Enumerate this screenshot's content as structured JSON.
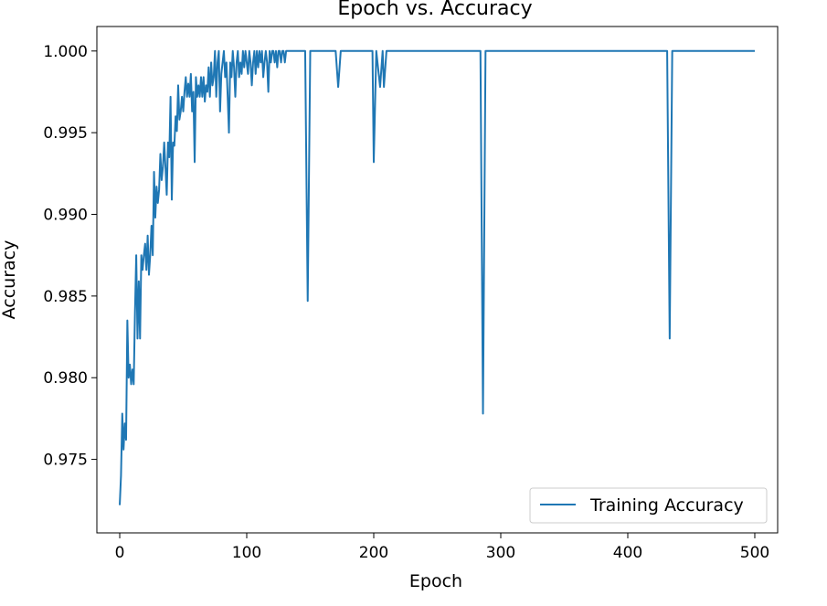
{
  "chart_data": {
    "type": "line",
    "title": "Epoch vs. Accuracy",
    "xlabel": "Epoch",
    "ylabel": "Accuracy",
    "xlim": [
      -18,
      518
    ],
    "ylim": [
      0.9705,
      1.0015
    ],
    "xticks": [
      0,
      100,
      200,
      300,
      400,
      500
    ],
    "yticks": [
      0.975,
      0.98,
      0.985,
      0.99,
      0.995,
      1.0
    ],
    "ytick_labels": [
      "0.975",
      "0.980",
      "0.985",
      "0.990",
      "0.995",
      "1.000"
    ],
    "grid": false,
    "legend": "bottom-right",
    "colors": {
      "series": "#1f77b4",
      "axes": "#000000",
      "legend_border": "#cccccc"
    },
    "series": [
      {
        "name": "Training Accuracy",
        "x": [
          0,
          1,
          2,
          3,
          4,
          5,
          6,
          7,
          8,
          9,
          10,
          11,
          12,
          13,
          14,
          15,
          16,
          17,
          18,
          19,
          20,
          21,
          22,
          23,
          24,
          25,
          26,
          27,
          28,
          29,
          30,
          31,
          32,
          33,
          34,
          35,
          36,
          37,
          38,
          39,
          40,
          41,
          42,
          43,
          44,
          45,
          46,
          47,
          48,
          49,
          50,
          51,
          52,
          53,
          54,
          55,
          56,
          57,
          58,
          59,
          60,
          61,
          62,
          63,
          64,
          65,
          66,
          67,
          68,
          69,
          70,
          71,
          72,
          73,
          74,
          75,
          76,
          77,
          78,
          79,
          80,
          81,
          82,
          83,
          84,
          85,
          86,
          87,
          88,
          89,
          90,
          91,
          92,
          93,
          94,
          95,
          96,
          97,
          98,
          99,
          100,
          101,
          102,
          103,
          104,
          105,
          106,
          107,
          108,
          109,
          110,
          111,
          112,
          113,
          114,
          115,
          116,
          117,
          118,
          119,
          120,
          121,
          122,
          123,
          124,
          125,
          126,
          127,
          128,
          129,
          130,
          131,
          132,
          133,
          134,
          135,
          140,
          146,
          148,
          150,
          165,
          170,
          172,
          174,
          195,
          199,
          200,
          202,
          205,
          207,
          208,
          210,
          280,
          284,
          286,
          288,
          290,
          420,
          431,
          433,
          435,
          437,
          500
        ],
        "y": [
          0.9722,
          0.974,
          0.9778,
          0.9756,
          0.9772,
          0.9762,
          0.9835,
          0.98,
          0.9808,
          0.9796,
          0.9805,
          0.9796,
          0.984,
          0.9875,
          0.9824,
          0.9859,
          0.9824,
          0.9875,
          0.9866,
          0.9875,
          0.9882,
          0.9866,
          0.9887,
          0.9863,
          0.9875,
          0.9893,
          0.9875,
          0.9926,
          0.9898,
          0.9917,
          0.9907,
          0.9915,
          0.9937,
          0.9921,
          0.9929,
          0.9944,
          0.9929,
          0.9912,
          0.9944,
          0.9935,
          0.9972,
          0.9909,
          0.9944,
          0.9942,
          0.996,
          0.9951,
          0.9979,
          0.9958,
          0.9963,
          0.9972,
          0.9963,
          0.9975,
          0.9984,
          0.9972,
          0.998,
          0.9972,
          0.9986,
          0.9963,
          0.9975,
          0.9932,
          0.9984,
          0.9972,
          0.9979,
          0.9972,
          0.9984,
          0.9972,
          0.9984,
          0.9969,
          0.9979,
          0.9975,
          0.999,
          0.9972,
          0.9993,
          0.9979,
          0.9984,
          1.0,
          0.9972,
          0.9993,
          1.0,
          0.9963,
          0.9986,
          0.9993,
          1.0,
          0.9984,
          0.9993,
          0.9972,
          0.995,
          0.9993,
          0.9984,
          1.0,
          0.999,
          0.9972,
          0.9993,
          1.0,
          0.9984,
          0.9993,
          0.9986,
          1.0,
          0.999,
          1.0,
          0.9993,
          0.9986,
          1.0,
          0.9993,
          0.9979,
          0.9993,
          1.0,
          0.9986,
          1.0,
          0.999,
          1.0,
          0.9993,
          1.0,
          0.9984,
          0.9993,
          1.0,
          0.9993,
          0.9975,
          1.0,
          0.9993,
          1.0,
          1.0,
          0.9993,
          1.0,
          0.999,
          1.0,
          1.0,
          0.9993,
          1.0,
          1.0,
          0.9993,
          1.0,
          1.0,
          1.0,
          1.0,
          1.0,
          1.0,
          1.0,
          0.9847,
          1.0,
          1.0,
          1.0,
          0.9978,
          1.0,
          1.0,
          1.0,
          0.9932,
          1.0,
          0.9978,
          1.0,
          0.9978,
          1.0,
          1.0,
          1.0,
          0.9778,
          1.0,
          1.0,
          1.0,
          1.0,
          0.9824,
          1.0,
          1.0,
          1.0
        ]
      }
    ]
  }
}
